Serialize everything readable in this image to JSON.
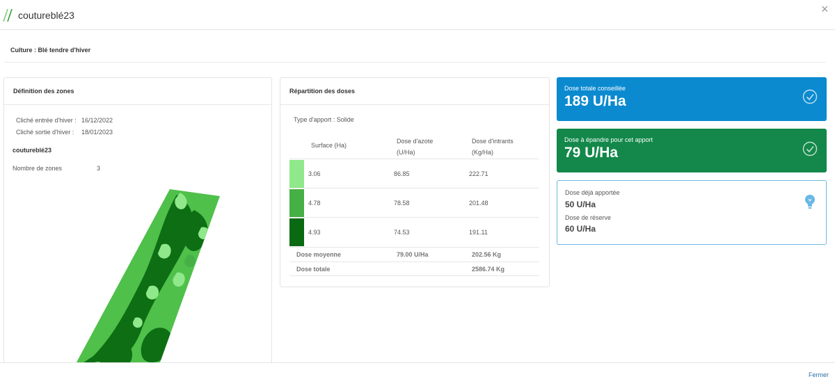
{
  "header": {
    "title": "coutureblé23",
    "logo_icon": "double-slash-logo-icon",
    "close_icon": "close-icon"
  },
  "culture": "Culture : Blé tendre d'hiver",
  "zones": {
    "heading": "Définition des zones",
    "cliche_entree_label": "Cliché entrée d'hiver :",
    "cliche_entree_value": "16/12/2022",
    "cliche_sortie_label": "Cliché sortie d'hiver :",
    "cliche_sortie_value": "18/01/2023",
    "parcel_name": "coutureblé23",
    "nb_zones_label": "Nombre de zones",
    "nb_zones_value": "3"
  },
  "repartition": {
    "heading": "Répartition des doses",
    "type_apport": "Type d'apport : Solide",
    "columns": [
      "Surface (Ha)",
      "Dose d'azote (U/Ha)",
      "Dose d'intrants (Kg/Ha)"
    ],
    "rows": [
      {
        "color": "#8fe88a",
        "surface": "3.06",
        "azote": "86.85",
        "intrants": "222.71"
      },
      {
        "color": "#46b046",
        "surface": "4.78",
        "azote": "78.58",
        "intrants": "201.48"
      },
      {
        "color": "#0a6a12",
        "surface": "4.93",
        "azote": "74.53",
        "intrants": "191.11"
      }
    ],
    "dose_moyenne_label": "Dose moyenne",
    "dose_moyenne_azote": "79.00 U/Ha",
    "dose_moyenne_intrants": "202.56 Kg",
    "dose_totale_label": "Dose totale",
    "dose_totale_intrants": "2586.74 Kg"
  },
  "kpis": {
    "total_label": "Dose totale conseillée",
    "total_value": "189 U/Ha",
    "spread_label": "Dose à épandre pour cet apport",
    "spread_value": "79 U/Ha",
    "already_label": "Dose déjà apportée",
    "already_value": "50 U/Ha",
    "reserve_label": "Dose de réserve",
    "reserve_value": "60 U/Ha",
    "colors": {
      "total": "#0b8ad0",
      "spread": "#13884a",
      "info_border": "#6ab8e4"
    },
    "icons": [
      "check-circle-icon",
      "lightbulb-icon"
    ]
  },
  "footer": {
    "close_label": "Fermer"
  }
}
